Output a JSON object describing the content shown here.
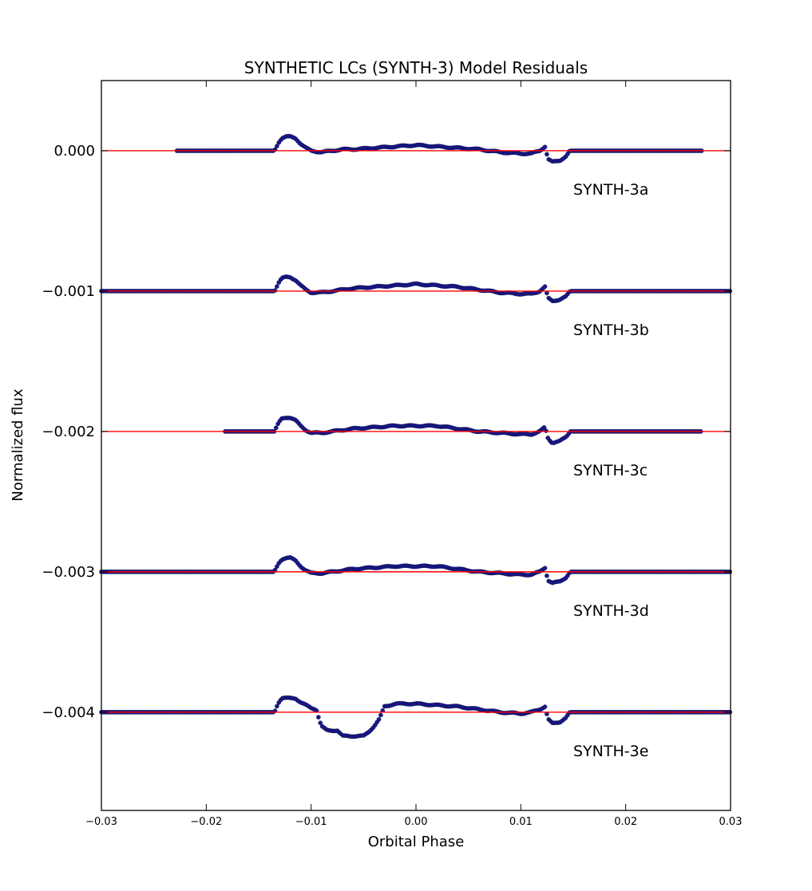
{
  "chart_data": {
    "type": "scatter",
    "title": "SYNTHETIC LCs (SYNTH-3) Model Residuals",
    "xlabel": "Orbital Phase",
    "ylabel": "Normalized flux",
    "xlim": [
      -0.03,
      0.03
    ],
    "ylim": [
      -0.0047,
      0.0005
    ],
    "xticks": [
      -0.03,
      -0.02,
      -0.01,
      0.0,
      0.01,
      0.02,
      0.03
    ],
    "xtick_labels": [
      "−0.03",
      "−0.02",
      "−0.01",
      "0.00",
      "0.01",
      "0.02",
      "0.03"
    ],
    "yticks": [
      0.0,
      -0.001,
      -0.002,
      -0.003,
      -0.004
    ],
    "ytick_labels": [
      "0.000",
      "−0.001",
      "−0.002",
      "−0.003",
      "−0.004"
    ],
    "grid": false,
    "legend": "none",
    "colors": {
      "points": "#1a1a8c",
      "model": "#ff0000"
    },
    "series": [
      {
        "label": "SYNTH-3a",
        "offset": 0.0,
        "x_range": [
          -0.0228,
          0.0273
        ],
        "points": [
          [
            -0.0135,
            0
          ],
          [
            -0.0133,
            3e-05
          ],
          [
            -0.0131,
            6e-05
          ],
          [
            -0.0128,
            9e-05
          ],
          [
            -0.0124,
            0.0001
          ],
          [
            -0.012,
            0.0001
          ],
          [
            -0.0115,
            9e-05
          ],
          [
            -0.011,
            5e-05
          ],
          [
            -0.0105,
            2e-05
          ],
          [
            -0.01,
            0.0
          ],
          [
            -0.009,
            -1e-05
          ],
          [
            -0.008,
            0.0
          ],
          [
            -0.007,
            1e-05
          ],
          [
            -0.006,
            1e-05
          ],
          [
            -0.004,
            2e-05
          ],
          [
            -0.002,
            3e-05
          ],
          [
            0.0,
            4e-05
          ],
          [
            0.002,
            3e-05
          ],
          [
            0.004,
            2e-05
          ],
          [
            0.006,
            1e-05
          ],
          [
            0.008,
            -1e-05
          ],
          [
            0.01,
            -2e-05
          ],
          [
            0.011,
            -2e-05
          ],
          [
            0.0118,
            0.0
          ],
          [
            0.0123,
            3e-05
          ],
          [
            0.0126,
            -6e-05
          ],
          [
            0.013,
            -8e-05
          ],
          [
            0.0137,
            -7e-05
          ],
          [
            0.0143,
            -4e-05
          ],
          [
            0.0147,
            0.0
          ]
        ]
      },
      {
        "label": "SYNTH-3b",
        "offset": -0.001,
        "x_range": [
          -0.03,
          0.03
        ],
        "points": [
          [
            -0.0135,
            0
          ],
          [
            -0.0133,
            3e-05
          ],
          [
            -0.0131,
            6e-05
          ],
          [
            -0.0128,
            9e-05
          ],
          [
            -0.0124,
            0.0001
          ],
          [
            -0.012,
            0.0001
          ],
          [
            -0.0115,
            8e-05
          ],
          [
            -0.011,
            4e-05
          ],
          [
            -0.0105,
            1e-05
          ],
          [
            -0.01,
            -1e-05
          ],
          [
            -0.009,
            -1e-05
          ],
          [
            -0.008,
            0.0
          ],
          [
            -0.007,
            1e-05
          ],
          [
            -0.006,
            2e-05
          ],
          [
            -0.004,
            3e-05
          ],
          [
            -0.002,
            4e-05
          ],
          [
            0.0,
            5e-05
          ],
          [
            0.002,
            4e-05
          ],
          [
            0.004,
            3e-05
          ],
          [
            0.006,
            1e-05
          ],
          [
            0.008,
            -1e-05
          ],
          [
            0.01,
            -2e-05
          ],
          [
            0.011,
            -2e-05
          ],
          [
            0.0118,
            0.0
          ],
          [
            0.0123,
            3e-05
          ],
          [
            0.0126,
            -5e-05
          ],
          [
            0.013,
            -7e-05
          ],
          [
            0.0137,
            -6e-05
          ],
          [
            0.0143,
            -4e-05
          ],
          [
            0.0147,
            0.0
          ]
        ]
      },
      {
        "label": "SYNTH-3c",
        "offset": -0.002,
        "x_range": [
          -0.0182,
          0.0273
        ],
        "points": [
          [
            -0.0135,
            0
          ],
          [
            -0.0133,
            3e-05
          ],
          [
            -0.0131,
            6e-05
          ],
          [
            -0.0128,
            9e-05
          ],
          [
            -0.0124,
            0.0001
          ],
          [
            -0.012,
            0.0001
          ],
          [
            -0.0115,
            8e-05
          ],
          [
            -0.011,
            4e-05
          ],
          [
            -0.0105,
            1e-05
          ],
          [
            -0.01,
            -1e-05
          ],
          [
            -0.009,
            -1e-05
          ],
          [
            -0.008,
            0.0
          ],
          [
            -0.007,
            1e-05
          ],
          [
            -0.006,
            2e-05
          ],
          [
            -0.004,
            3e-05
          ],
          [
            -0.002,
            4e-05
          ],
          [
            0.0,
            4e-05
          ],
          [
            0.002,
            4e-05
          ],
          [
            0.004,
            2e-05
          ],
          [
            0.006,
            0.0
          ],
          [
            0.008,
            -1e-05
          ],
          [
            0.01,
            -2e-05
          ],
          [
            0.011,
            -2e-05
          ],
          [
            0.0118,
            0.0
          ],
          [
            0.0123,
            3e-05
          ],
          [
            0.0126,
            -5e-05
          ],
          [
            0.013,
            -8e-05
          ],
          [
            0.0137,
            -7e-05
          ],
          [
            0.0143,
            -4e-05
          ],
          [
            0.0147,
            0.0
          ]
        ]
      },
      {
        "label": "SYNTH-3d",
        "offset": -0.003,
        "x_range": [
          -0.03,
          0.03
        ],
        "points": [
          [
            -0.0135,
            0
          ],
          [
            -0.0133,
            3e-05
          ],
          [
            -0.0131,
            6e-05
          ],
          [
            -0.0128,
            9e-05
          ],
          [
            -0.0124,
            0.0001
          ],
          [
            -0.012,
            0.0001
          ],
          [
            -0.0115,
            8e-05
          ],
          [
            -0.011,
            4e-05
          ],
          [
            -0.0105,
            1e-05
          ],
          [
            -0.01,
            -1e-05
          ],
          [
            -0.009,
            -1e-05
          ],
          [
            -0.008,
            0.0
          ],
          [
            -0.007,
            1e-05
          ],
          [
            -0.006,
            2e-05
          ],
          [
            -0.004,
            3e-05
          ],
          [
            -0.002,
            4e-05
          ],
          [
            0.0,
            4e-05
          ],
          [
            0.002,
            4e-05
          ],
          [
            0.004,
            2e-05
          ],
          [
            0.006,
            0.0
          ],
          [
            0.008,
            -1e-05
          ],
          [
            0.01,
            -2e-05
          ],
          [
            0.011,
            -2e-05
          ],
          [
            0.0118,
            0.0
          ],
          [
            0.0123,
            3e-05
          ],
          [
            0.0126,
            -6e-05
          ],
          [
            0.013,
            -8e-05
          ],
          [
            0.0137,
            -7e-05
          ],
          [
            0.0143,
            -4e-05
          ],
          [
            0.0147,
            0.0
          ]
        ]
      },
      {
        "label": "SYNTH-3e",
        "offset": -0.004,
        "x_range": [
          -0.03,
          0.03
        ],
        "points": [
          [
            -0.0135,
            0
          ],
          [
            -0.0133,
            4e-05
          ],
          [
            -0.0131,
            7e-05
          ],
          [
            -0.0128,
            0.0001
          ],
          [
            -0.0124,
            0.0001
          ],
          [
            -0.012,
            0.0001
          ],
          [
            -0.0115,
            0.0001
          ],
          [
            -0.011,
            7e-05
          ],
          [
            -0.0105,
            5e-05
          ],
          [
            -0.01,
            3e-05
          ],
          [
            -0.0095,
            2e-05
          ],
          [
            -0.0092,
            -6e-05
          ],
          [
            -0.009,
            -0.0001
          ],
          [
            -0.0085,
            -0.00013
          ],
          [
            -0.008,
            -0.00013
          ],
          [
            -0.0075,
            -0.00013
          ],
          [
            -0.007,
            -0.00017
          ],
          [
            -0.0065,
            -0.00017
          ],
          [
            -0.006,
            -0.00017
          ],
          [
            -0.0055,
            -0.00017
          ],
          [
            -0.005,
            -0.00017
          ],
          [
            -0.0045,
            -0.00014
          ],
          [
            -0.004,
            -0.0001
          ],
          [
            -0.0035,
            -5e-05
          ],
          [
            -0.003,
            4e-05
          ],
          [
            -0.002,
            6e-05
          ],
          [
            0.0,
            6e-05
          ],
          [
            0.002,
            5e-05
          ],
          [
            0.004,
            4e-05
          ],
          [
            0.006,
            2e-05
          ],
          [
            0.008,
            0.0
          ],
          [
            0.01,
            -1e-05
          ],
          [
            0.011,
            0.0
          ],
          [
            0.0118,
            2e-05
          ],
          [
            0.0123,
            4e-05
          ],
          [
            0.0126,
            -5e-05
          ],
          [
            0.013,
            -8e-05
          ],
          [
            0.0137,
            -7e-05
          ],
          [
            0.0143,
            -4e-05
          ],
          [
            0.0147,
            0.0
          ]
        ]
      }
    ]
  }
}
